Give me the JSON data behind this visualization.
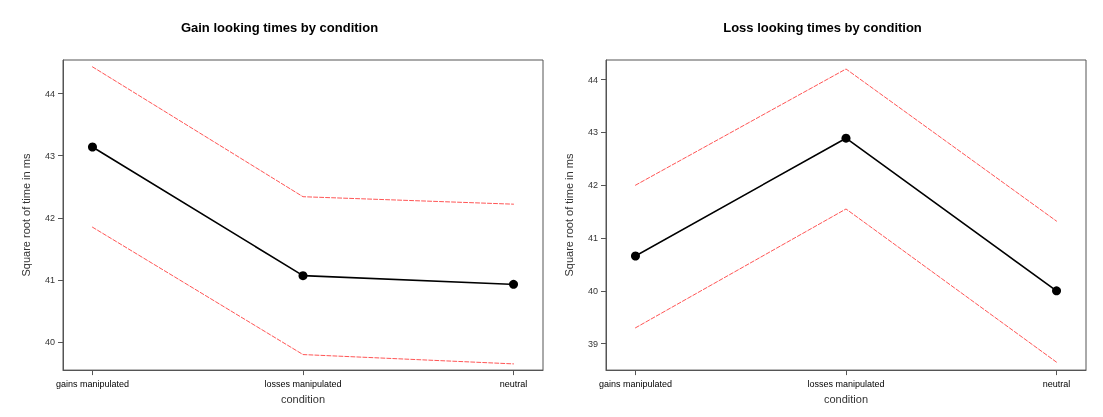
{
  "chart_data": [
    {
      "type": "line",
      "title": "Gain looking times by condition",
      "xlabel": "condition",
      "ylabel": "Square root of time in ms",
      "categories": [
        "gains manipulated",
        "losses manipulated",
        "neutral"
      ],
      "ylim": [
        39.55,
        44.54
      ],
      "yticks": [
        40,
        41,
        42,
        43,
        44
      ],
      "grid": false,
      "series": [
        {
          "color": "#000000",
          "marker": "circle",
          "line_style": "solid",
          "values": [
            43.14,
            41.07,
            40.93
          ]
        },
        {
          "color": "#ff5555",
          "marker": "none",
          "line_style": "dashed",
          "values": [
            44.43,
            42.34,
            42.22
          ]
        },
        {
          "color": "#ff5555",
          "marker": "none",
          "line_style": "dashed",
          "values": [
            41.85,
            39.8,
            39.65
          ]
        }
      ]
    },
    {
      "type": "line",
      "title": "Loss looking times by condition",
      "xlabel": "condition",
      "ylabel": "Square root of time in ms",
      "categories": [
        "gains manipulated",
        "losses manipulated",
        "neutral"
      ],
      "ylim": [
        38.5,
        44.37
      ],
      "yticks": [
        39,
        40,
        41,
        42,
        43,
        44
      ],
      "grid": false,
      "series": [
        {
          "color": "#000000",
          "marker": "circle",
          "line_style": "solid",
          "values": [
            40.66,
            42.89,
            40.0
          ]
        },
        {
          "color": "#ff5555",
          "marker": "none",
          "line_style": "dashed",
          "values": [
            42.0,
            44.2,
            41.32
          ]
        },
        {
          "color": "#ff5555",
          "marker": "none",
          "line_style": "dashed",
          "values": [
            39.3,
            41.55,
            38.65
          ]
        }
      ]
    }
  ]
}
